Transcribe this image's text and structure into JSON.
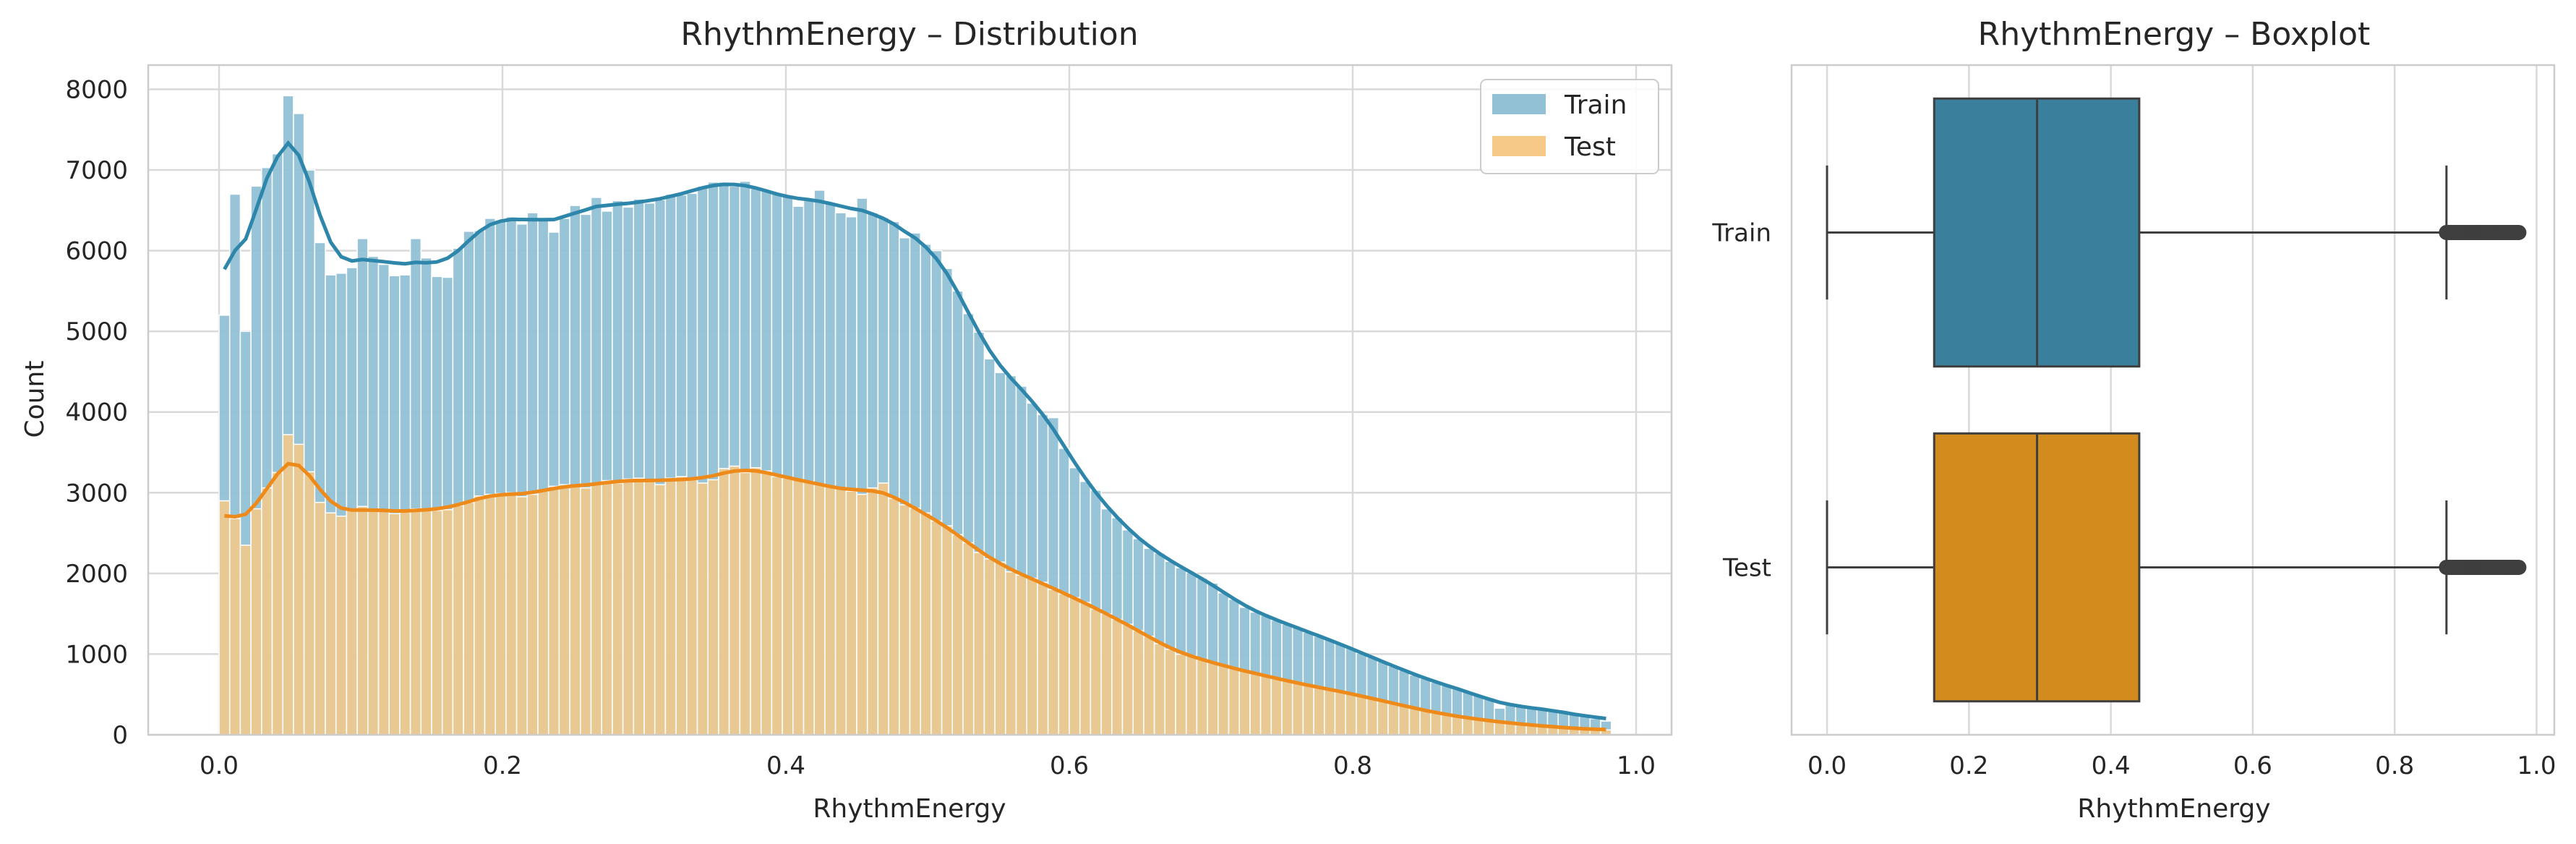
{
  "chart_data": [
    {
      "type": "histogram",
      "title": "RhythmEnergy – Distribution",
      "xlabel": "RhythmEnergy",
      "ylabel": "Count",
      "xlim": [
        -0.05,
        1.025
      ],
      "ylim": [
        0,
        8300
      ],
      "xticks": [
        "0.0",
        "0.2",
        "0.4",
        "0.6",
        "0.8",
        "1.0"
      ],
      "yticks": [
        "0",
        "1000",
        "2000",
        "3000",
        "4000",
        "5000",
        "6000",
        "7000",
        "8000"
      ],
      "grid": true,
      "legend": "top-right",
      "bin_start": 0.0,
      "bin_width": 0.0075,
      "series": [
        {
          "name": "Train",
          "color": "#92c1d6",
          "kde_color": "#2e86ab",
          "values": [
            5200,
            6700,
            5000,
            6800,
            7030,
            7200,
            7920,
            7700,
            7000,
            6100,
            5700,
            5720,
            5790,
            6150,
            5930,
            5830,
            5690,
            5700,
            6150,
            5910,
            5680,
            5670,
            6030,
            6240,
            6250,
            6400,
            6380,
            6420,
            6330,
            6470,
            6400,
            6230,
            6400,
            6560,
            6450,
            6660,
            6490,
            6620,
            6540,
            6640,
            6590,
            6630,
            6700,
            6690,
            6710,
            6800,
            6850,
            6850,
            6800,
            6860,
            6770,
            6750,
            6700,
            6680,
            6550,
            6620,
            6750,
            6600,
            6470,
            6420,
            6650,
            6470,
            6410,
            6360,
            6160,
            6220,
            6080,
            6000,
            5780,
            5500,
            5220,
            4990,
            4660,
            4490,
            4450,
            4320,
            4110,
            3970,
            3930,
            3550,
            3310,
            3140,
            3030,
            2800,
            2690,
            2540,
            2430,
            2310,
            2250,
            2150,
            2070,
            2010,
            1940,
            1880,
            1760,
            1680,
            1580,
            1520,
            1480,
            1420,
            1370,
            1330,
            1270,
            1220,
            1180,
            1130,
            1070,
            1010,
            960,
            910,
            850,
            800,
            740,
            700,
            650,
            610,
            570,
            530,
            490,
            460,
            330,
            390,
            350,
            340,
            310,
            300,
            280,
            260,
            240,
            200,
            170
          ]
        },
        {
          "name": "Test",
          "color": "#f6c987",
          "kde_color": "#ee8a1a",
          "values": [
            2900,
            2680,
            2350,
            2800,
            3060,
            3250,
            3720,
            3600,
            3260,
            2880,
            2750,
            2710,
            2800,
            2830,
            2790,
            2780,
            2740,
            2760,
            2800,
            2800,
            2780,
            2790,
            2840,
            2880,
            2960,
            2980,
            2990,
            3000,
            2950,
            2980,
            3020,
            3080,
            3100,
            3090,
            3060,
            3110,
            3150,
            3120,
            3170,
            3180,
            3140,
            3100,
            3180,
            3200,
            3180,
            3120,
            3160,
            3300,
            3330,
            3250,
            3310,
            3270,
            3200,
            3180,
            3160,
            3140,
            3100,
            3080,
            3050,
            3020,
            2980,
            3060,
            3120,
            2930,
            2850,
            2810,
            2750,
            2650,
            2590,
            2480,
            2380,
            2260,
            2180,
            2140,
            2020,
            1980,
            1940,
            1890,
            1800,
            1750,
            1700,
            1640,
            1560,
            1500,
            1430,
            1370,
            1290,
            1220,
            1130,
            1060,
            1000,
            980,
            930,
            890,
            860,
            820,
            790,
            760,
            730,
            700,
            670,
            640,
            610,
            590,
            560,
            540,
            510,
            480,
            450,
            420,
            390,
            360,
            330,
            300,
            270,
            250,
            230,
            210,
            190,
            170,
            160,
            150,
            130,
            120,
            110,
            100,
            90,
            80,
            70,
            65,
            60
          ]
        }
      ]
    },
    {
      "type": "boxplot",
      "title": "RhythmEnergy – Boxplot",
      "xlabel": "RhythmEnergy",
      "ylabel": "",
      "xlim": [
        -0.05,
        1.025
      ],
      "xticks": [
        "0.0",
        "0.2",
        "0.4",
        "0.6",
        "0.8",
        "1.0"
      ],
      "grid": true,
      "categories": [
        "Train",
        "Test"
      ],
      "series": [
        {
          "name": "Train",
          "color": "#3a7f9c",
          "whisker_low": 0.0,
          "q1": 0.151,
          "median": 0.296,
          "q3": 0.44,
          "whisker_high": 0.873,
          "outliers_range": [
            0.873,
            0.975
          ]
        },
        {
          "name": "Test",
          "color": "#d48b1e",
          "whisker_low": 0.0,
          "q1": 0.151,
          "median": 0.296,
          "q3": 0.44,
          "whisker_high": 0.873,
          "outliers_range": [
            0.873,
            0.975
          ]
        }
      ]
    }
  ]
}
